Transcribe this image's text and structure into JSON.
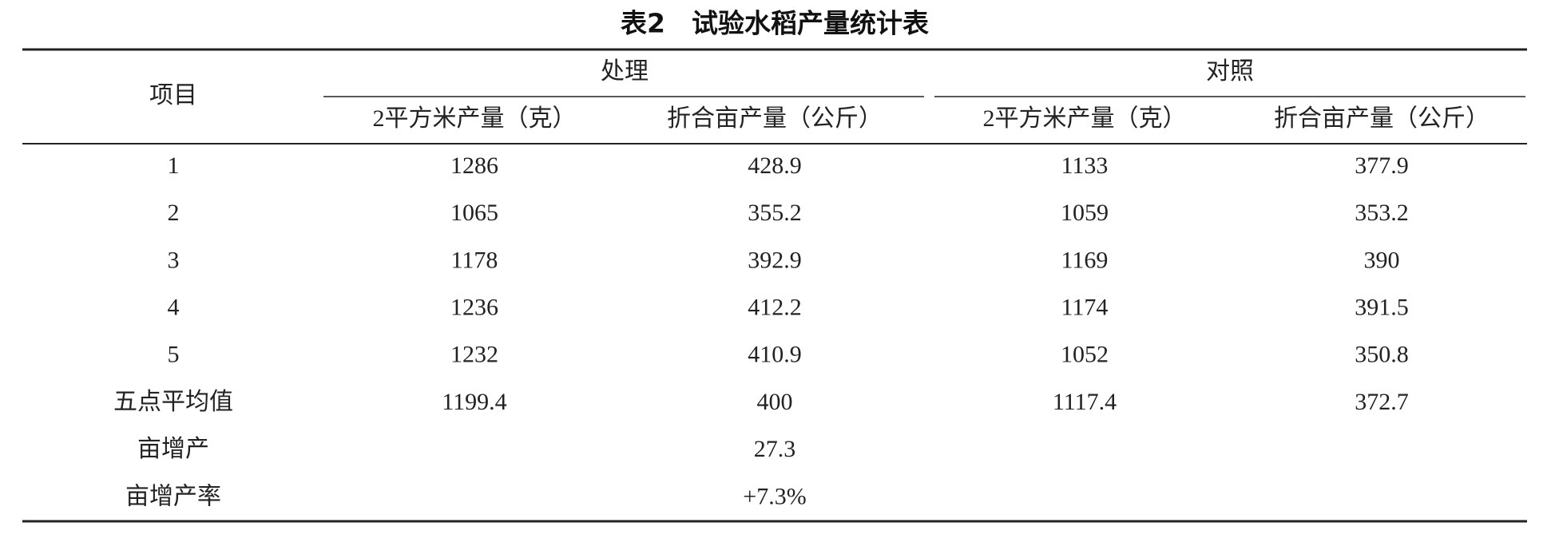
{
  "title": "表2　试验水稻产量统计表",
  "table": {
    "header": {
      "item": "项目",
      "groups": [
        "处理",
        "对照"
      ],
      "subheaders": [
        "2平方米产量（克）",
        "折合亩产量（公斤）",
        "2平方米产量（克）",
        "折合亩产量（公斤）"
      ]
    },
    "rows": [
      {
        "label": "1",
        "cells": [
          "1286",
          "428.9",
          "1133",
          "377.9"
        ]
      },
      {
        "label": "2",
        "cells": [
          "1065",
          "355.2",
          "1059",
          "353.2"
        ]
      },
      {
        "label": "3",
        "cells": [
          "1178",
          "392.9",
          "1169",
          "390"
        ]
      },
      {
        "label": "4",
        "cells": [
          "1236",
          "412.2",
          "1174",
          "391.5"
        ]
      },
      {
        "label": "5",
        "cells": [
          "1232",
          "410.9",
          "1052",
          "350.8"
        ]
      },
      {
        "label": "五点平均值",
        "cells": [
          "1199.4",
          "400",
          "1117.4",
          "372.7"
        ]
      },
      {
        "label": "亩增产",
        "value": "27.3"
      },
      {
        "label": "亩增产率",
        "value": "+7.3%"
      }
    ]
  }
}
